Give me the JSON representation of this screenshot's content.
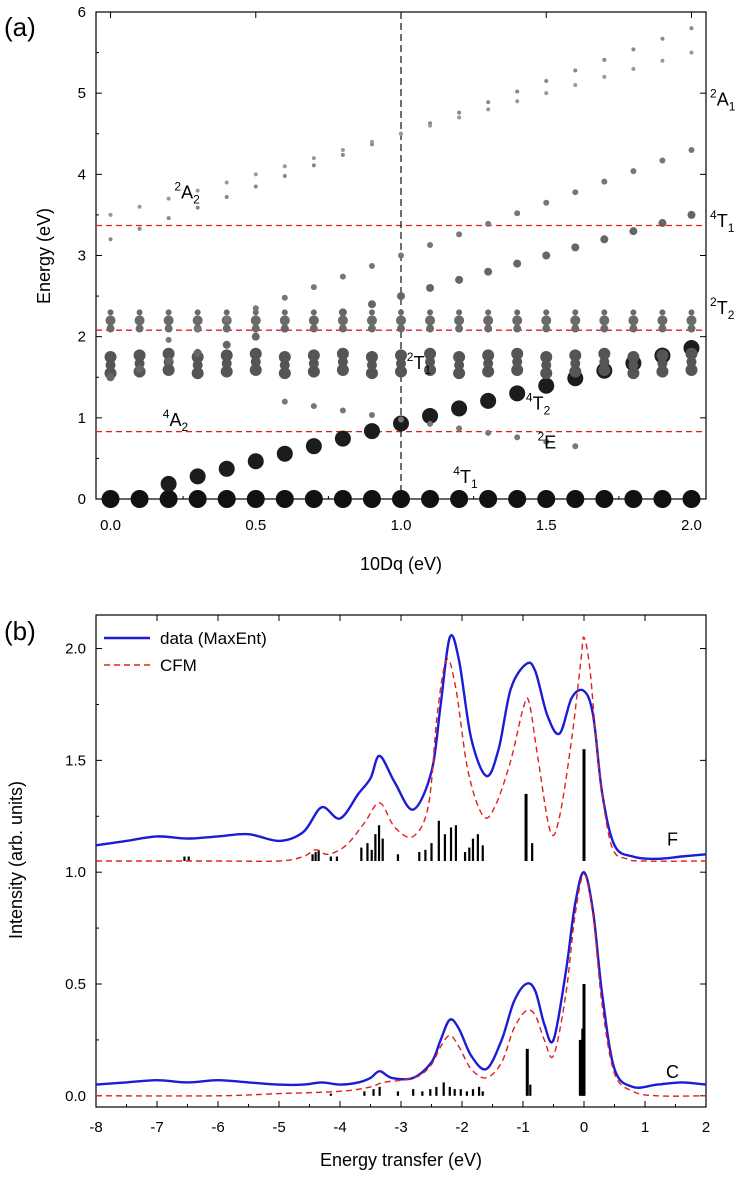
{
  "panel_a": {
    "label": "(a)",
    "xlabel": "10Dq (eV)",
    "ylabel": "Energy (eV)",
    "xlim": [
      -0.05,
      2.05
    ],
    "ylim": [
      0,
      6
    ],
    "xticks": [
      {
        "v": 0.0,
        "t": "0.0"
      },
      {
        "v": 0.5,
        "t": "0.5"
      },
      {
        "v": 1.0,
        "t": "1.0"
      },
      {
        "v": 1.5,
        "t": "1.5"
      },
      {
        "v": 2.0,
        "t": "2.0"
      }
    ],
    "yticks": [
      {
        "v": 0,
        "t": "0"
      },
      {
        "v": 1,
        "t": "1"
      },
      {
        "v": 2,
        "t": "2"
      },
      {
        "v": 3,
        "t": "3"
      },
      {
        "v": 4,
        "t": "4"
      },
      {
        "v": 5,
        "t": "5"
      },
      {
        "v": 6,
        "t": "6"
      }
    ],
    "hlines": [
      0.83,
      2.08,
      3.37
    ],
    "hline_color": "#e0201c",
    "vline": 1.0,
    "terms_inner": [
      {
        "sup": "2",
        "main": "A",
        "sub": "2",
        "x": 0.22,
        "y": 3.7
      },
      {
        "sup": "4",
        "main": "A",
        "sub": "2",
        "x": 0.18,
        "y": 0.9
      },
      {
        "sup": "2",
        "main": "T",
        "sub": "1",
        "x": 1.02,
        "y": 1.6
      },
      {
        "sup": "4",
        "main": "T",
        "sub": "2",
        "x": 1.43,
        "y": 1.1
      },
      {
        "sup": "2",
        "main": "E",
        "sub": "",
        "x": 1.47,
        "y": 0.62
      },
      {
        "sup": "4",
        "main": "T",
        "sub": "1",
        "x": 1.18,
        "y": 0.2
      }
    ],
    "terms_right": [
      {
        "sup": "2",
        "main": "A",
        "sub": "1",
        "y": 4.85
      },
      {
        "sup": "4",
        "main": "T",
        "sub": "1",
        "y": 3.35
      },
      {
        "sup": "2",
        "main": "T",
        "sub": "2",
        "y": 2.28
      }
    ]
  },
  "panel_b": {
    "label": "(b)",
    "xlabel": "Energy transfer (eV)",
    "ylabel": "Intensity (arb. units)",
    "xlim": [
      -8,
      2
    ],
    "ylim": [
      -0.05,
      2.15
    ],
    "xticks": [
      {
        "v": -8,
        "t": "-8"
      },
      {
        "v": -7,
        "t": "-7"
      },
      {
        "v": -6,
        "t": "-6"
      },
      {
        "v": -5,
        "t": "-5"
      },
      {
        "v": -4,
        "t": "-4"
      },
      {
        "v": -3,
        "t": "-3"
      },
      {
        "v": -2,
        "t": "-2"
      },
      {
        "v": -1,
        "t": "-1"
      },
      {
        "v": 0,
        "t": "0"
      },
      {
        "v": 1,
        "t": "1"
      },
      {
        "v": 2,
        "t": "2"
      }
    ],
    "yticks": [
      {
        "v": 0.0,
        "t": "0.0"
      },
      {
        "v": 0.5,
        "t": "0.5"
      },
      {
        "v": 1.0,
        "t": "1.0"
      },
      {
        "v": 1.5,
        "t": "1.5"
      },
      {
        "v": 2.0,
        "t": "2.0"
      }
    ],
    "legend": [
      {
        "name": "data (MaxEnt)",
        "color": "#1c1cd6",
        "dash": ""
      },
      {
        "name": "CFM",
        "color": "#e0201c",
        "dash": "6,4"
      }
    ],
    "curve_tags": [
      {
        "text": "F",
        "x": 1.45,
        "y": 1.12
      },
      {
        "text": "C",
        "x": 1.45,
        "y": 0.08
      }
    ]
  },
  "chart_data": [
    {
      "type": "scatter",
      "title": "",
      "xlabel": "10Dq (eV)",
      "ylabel": "Energy (eV)",
      "xlim": [
        -0.05,
        2.05
      ],
      "ylim": [
        0,
        6
      ],
      "note_series": "multiplet energies vs 10Dq; size = weight",
      "branches": [
        {
          "name": "4T1 ground",
          "slope": 0.0,
          "intercept": 0.0,
          "size": 9
        },
        {
          "name": "4T2",
          "slope": 0.93,
          "intercept": 0.0,
          "size": 8
        },
        {
          "name": "4A2 / 2E band",
          "slope": 0.0,
          "intercept": 1.75,
          "size": 7
        },
        {
          "name": "2T1 / 2T2",
          "slope": 0.0,
          "intercept": 2.2,
          "size": 5
        },
        {
          "name": "4T1 upper",
          "slope": 1.0,
          "intercept": 1.5,
          "size": 5
        },
        {
          "name": "2A1",
          "slope": 1.3,
          "intercept": 3.2,
          "size": 3
        }
      ],
      "hlines": [
        0.83,
        2.08,
        3.37
      ],
      "vline": 1.0
    },
    {
      "type": "line",
      "title": "",
      "xlabel": "Energy transfer (eV)",
      "ylabel": "Intensity (arb. units)",
      "xlim": [
        -8,
        2
      ],
      "ylim": [
        0,
        2.1
      ],
      "series": [
        {
          "name": "data (MaxEnt)",
          "group": "F",
          "color": "#1c1cd6",
          "x": [
            -8,
            -7.5,
            -7,
            -6.5,
            -6,
            -5.5,
            -5,
            -4.6,
            -4.3,
            -4.0,
            -3.7,
            -3.5,
            -3.35,
            -3.1,
            -2.8,
            -2.5,
            -2.35,
            -2.2,
            -2.05,
            -1.85,
            -1.6,
            -1.4,
            -1.2,
            -0.95,
            -0.8,
            -0.6,
            -0.4,
            -0.2,
            0.0,
            0.15,
            0.3,
            0.5,
            0.8,
            1.2,
            1.6,
            2.0
          ],
          "y": [
            1.12,
            1.14,
            1.16,
            1.15,
            1.16,
            1.17,
            1.14,
            1.18,
            1.29,
            1.24,
            1.35,
            1.42,
            1.52,
            1.4,
            1.28,
            1.45,
            1.75,
            2.05,
            1.95,
            1.6,
            1.43,
            1.55,
            1.82,
            1.93,
            1.9,
            1.7,
            1.62,
            1.78,
            1.81,
            1.7,
            1.35,
            1.12,
            1.07,
            1.06,
            1.07,
            1.08
          ]
        },
        {
          "name": "CFM",
          "group": "F",
          "color": "#e0201c",
          "x": [
            -8,
            -6,
            -5,
            -4.6,
            -4.4,
            -4.2,
            -3.9,
            -3.6,
            -3.35,
            -3.1,
            -2.8,
            -2.55,
            -2.4,
            -2.25,
            -2.1,
            -1.9,
            -1.65,
            -1.45,
            -1.2,
            -1.0,
            -0.9,
            -0.75,
            -0.55,
            -0.4,
            -0.2,
            -0.05,
            0.0,
            0.1,
            0.25,
            0.45,
            0.7,
            1.0,
            2.0
          ],
          "y": [
            1.05,
            1.05,
            1.05,
            1.07,
            1.1,
            1.08,
            1.12,
            1.22,
            1.31,
            1.2,
            1.16,
            1.3,
            1.72,
            1.95,
            1.82,
            1.45,
            1.25,
            1.3,
            1.5,
            1.73,
            1.76,
            1.5,
            1.18,
            1.25,
            1.6,
            1.95,
            2.05,
            1.9,
            1.45,
            1.12,
            1.06,
            1.05,
            1.05
          ]
        },
        {
          "name": "data (MaxEnt)",
          "group": "C",
          "color": "#1c1cd6",
          "x": [
            -8,
            -7.5,
            -7,
            -6.5,
            -6,
            -5.5,
            -5,
            -4.6,
            -4.3,
            -4.0,
            -3.7,
            -3.5,
            -3.35,
            -3.15,
            -2.8,
            -2.5,
            -2.35,
            -2.2,
            -2.05,
            -1.85,
            -1.6,
            -1.35,
            -1.15,
            -0.95,
            -0.8,
            -0.65,
            -0.5,
            -0.3,
            -0.15,
            0.0,
            0.15,
            0.3,
            0.5,
            0.8,
            1.2,
            1.6,
            2.0
          ],
          "y": [
            0.05,
            0.06,
            0.07,
            0.06,
            0.07,
            0.06,
            0.05,
            0.05,
            0.06,
            0.05,
            0.06,
            0.08,
            0.11,
            0.08,
            0.08,
            0.15,
            0.25,
            0.34,
            0.3,
            0.18,
            0.12,
            0.25,
            0.42,
            0.5,
            0.47,
            0.32,
            0.25,
            0.55,
            0.85,
            1.0,
            0.82,
            0.45,
            0.12,
            0.04,
            0.05,
            0.06,
            0.05
          ]
        },
        {
          "name": "CFM",
          "group": "C",
          "color": "#e0201c",
          "x": [
            -8,
            -6,
            -5,
            -4,
            -3.5,
            -3.3,
            -3.0,
            -2.7,
            -2.5,
            -2.35,
            -2.2,
            -2.05,
            -1.85,
            -1.6,
            -1.35,
            -1.15,
            -0.95,
            -0.8,
            -0.65,
            -0.5,
            -0.3,
            -0.15,
            0.0,
            0.15,
            0.3,
            0.5,
            0.8,
            1.2,
            2.0
          ],
          "y": [
            0.0,
            0.0,
            0.01,
            0.02,
            0.04,
            0.06,
            0.07,
            0.09,
            0.14,
            0.22,
            0.27,
            0.22,
            0.12,
            0.08,
            0.15,
            0.3,
            0.38,
            0.36,
            0.25,
            0.18,
            0.45,
            0.8,
            0.99,
            0.8,
            0.4,
            0.1,
            0.02,
            0.0,
            0.0
          ]
        }
      ],
      "sticks_F": {
        "base": 1.05,
        "x": [
          -6.55,
          -6.48,
          -4.45,
          -4.4,
          -4.35,
          -4.15,
          -4.05,
          -3.65,
          -3.55,
          -3.48,
          -3.42,
          -3.36,
          -3.3,
          -3.05,
          -2.7,
          -2.6,
          -2.5,
          -2.38,
          -2.28,
          -2.18,
          -2.1,
          -1.95,
          -1.88,
          -1.82,
          -1.74,
          -1.66,
          -0.95,
          -0.85,
          0.0
        ],
        "h": [
          0.02,
          0.02,
          0.03,
          0.04,
          0.05,
          0.02,
          0.02,
          0.06,
          0.08,
          0.05,
          0.12,
          0.16,
          0.1,
          0.03,
          0.04,
          0.05,
          0.08,
          0.18,
          0.12,
          0.15,
          0.16,
          0.04,
          0.06,
          0.1,
          0.12,
          0.07,
          0.3,
          0.08,
          0.5
        ]
      },
      "sticks_C": {
        "base": 0.0,
        "x": [
          -4.15,
          -3.6,
          -3.45,
          -3.35,
          -3.05,
          -2.8,
          -2.65,
          -2.52,
          -2.42,
          -2.3,
          -2.2,
          -2.12,
          -2.02,
          -1.92,
          -1.82,
          -1.72,
          -1.66,
          -0.93,
          -0.88,
          -0.06,
          -0.02,
          0.0
        ],
        "h": [
          0.01,
          0.02,
          0.03,
          0.04,
          0.02,
          0.03,
          0.02,
          0.03,
          0.04,
          0.06,
          0.04,
          0.03,
          0.03,
          0.02,
          0.03,
          0.04,
          0.02,
          0.21,
          0.05,
          0.25,
          0.3,
          0.5
        ]
      }
    }
  ]
}
